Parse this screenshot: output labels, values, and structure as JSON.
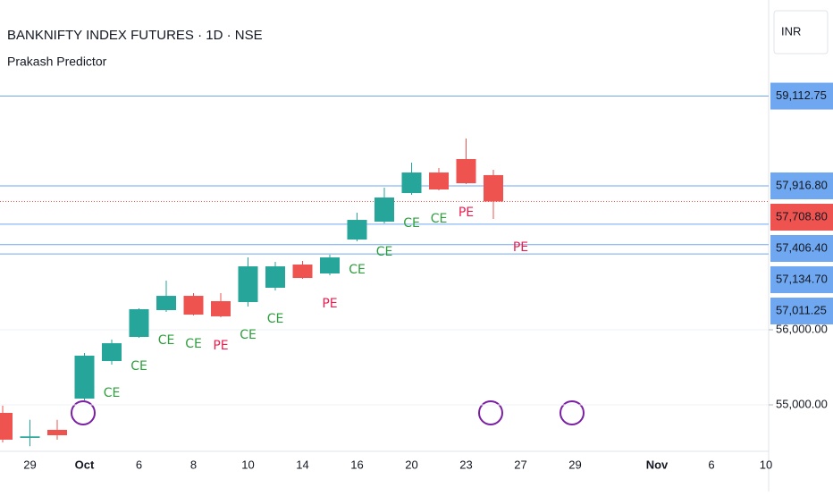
{
  "chart_data": {
    "type": "candlestick",
    "title": "BANKNIFTY INDEX FUTURES · 1D · NSE",
    "subtitle": "Prakash Predictor",
    "currency": "INR",
    "categories": [
      null,
      "29",
      null,
      "Oct",
      null,
      "6",
      null,
      "8",
      null,
      "10",
      null,
      "14",
      null,
      "16",
      null,
      "20",
      null,
      "23",
      null,
      "27",
      null,
      "29",
      null,
      null,
      "Nov",
      null,
      "6",
      null,
      "10"
    ],
    "open": [
      54893,
      54560,
      54667,
      55083,
      55583,
      55905,
      56262,
      56452,
      56381,
      56369,
      56560,
      56869,
      56750,
      57202,
      57440,
      57821,
      58095,
      58274,
      58060,
      null,
      null,
      null,
      null,
      null,
      null,
      null,
      null,
      null,
      null
    ],
    "high": [
      54990,
      54800,
      54800,
      55690,
      55870,
      56286,
      56655,
      56488,
      56488,
      56964,
      56905,
      56917,
      57000,
      57560,
      57893,
      58226,
      58155,
      58548,
      58131,
      null,
      null,
      null,
      null,
      null,
      null,
      null,
      null,
      null,
      null
    ],
    "low": [
      54500,
      54450,
      54536,
      55060,
      55536,
      55893,
      56238,
      56190,
      56167,
      56310,
      56524,
      56679,
      56726,
      57179,
      57417,
      57798,
      57857,
      57940,
      57476,
      null,
      null,
      null,
      null,
      null,
      null,
      null,
      null,
      null,
      null
    ],
    "close": [
      54536,
      54580,
      54595,
      55655,
      55821,
      56274,
      56452,
      56202,
      56179,
      56845,
      56845,
      56690,
      56964,
      57464,
      57762,
      58095,
      57869,
      57952,
      57708.8,
      null,
      null,
      null,
      null,
      null,
      null,
      null,
      null,
      null,
      null
    ],
    "signals": [
      null,
      null,
      null,
      null,
      "CE",
      "CE",
      "CE",
      "CE",
      "PE",
      "CE",
      "CE",
      null,
      "PE",
      "CE",
      "CE",
      "CE",
      "CE",
      "PE",
      null,
      "PE",
      null,
      null,
      null,
      null,
      null,
      null,
      null,
      null,
      null
    ],
    "up_color": "#26a69a",
    "down_color": "#ef5350",
    "ce_color": "#2e9e3e",
    "pe_color": "#e91e4f",
    "levels": [
      {
        "value": 59112.75,
        "label": "59,112.75"
      },
      {
        "value": 57916.8,
        "label": "57,916.80"
      },
      {
        "value": 57406.4,
        "label": "57,406.40"
      },
      {
        "value": 57134.7,
        "label": "57,134.70"
      },
      {
        "value": 57011.25,
        "label": "57,011.25"
      }
    ],
    "level_color": "#6fa8f0",
    "last_price": {
      "value": 57708.8,
      "label": "57,708.80"
    },
    "ylim": [
      54381,
      60393
    ],
    "yticks": [
      {
        "value": 56000,
        "label": "56,000.00"
      },
      {
        "value": 55000,
        "label": "55,000.00"
      }
    ],
    "grid": true
  }
}
